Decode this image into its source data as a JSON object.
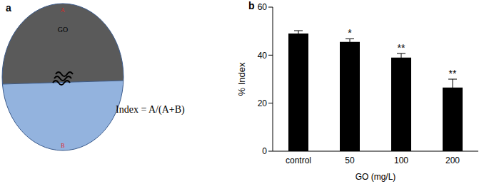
{
  "panel_labels": [
    "a",
    "b"
  ],
  "diagram": {
    "region_top": "GO",
    "label_top": "A",
    "label_bottom": "B",
    "formula": "Index = A/(A+B)"
  },
  "chart_data": {
    "type": "bar",
    "categories": [
      "control",
      "50",
      "100",
      "200"
    ],
    "values": [
      49,
      45.5,
      39,
      26.5
    ],
    "errors": [
      1.2,
      1.3,
      1.7,
      3.5
    ],
    "annotations": [
      null,
      "*",
      "**",
      "**"
    ],
    "color": "#000000",
    "x_label": "GO (mg/L)",
    "y_label": "% Index",
    "ylim": [
      0,
      60
    ],
    "yticks": [
      0,
      20,
      40,
      60
    ],
    "grid": false
  }
}
